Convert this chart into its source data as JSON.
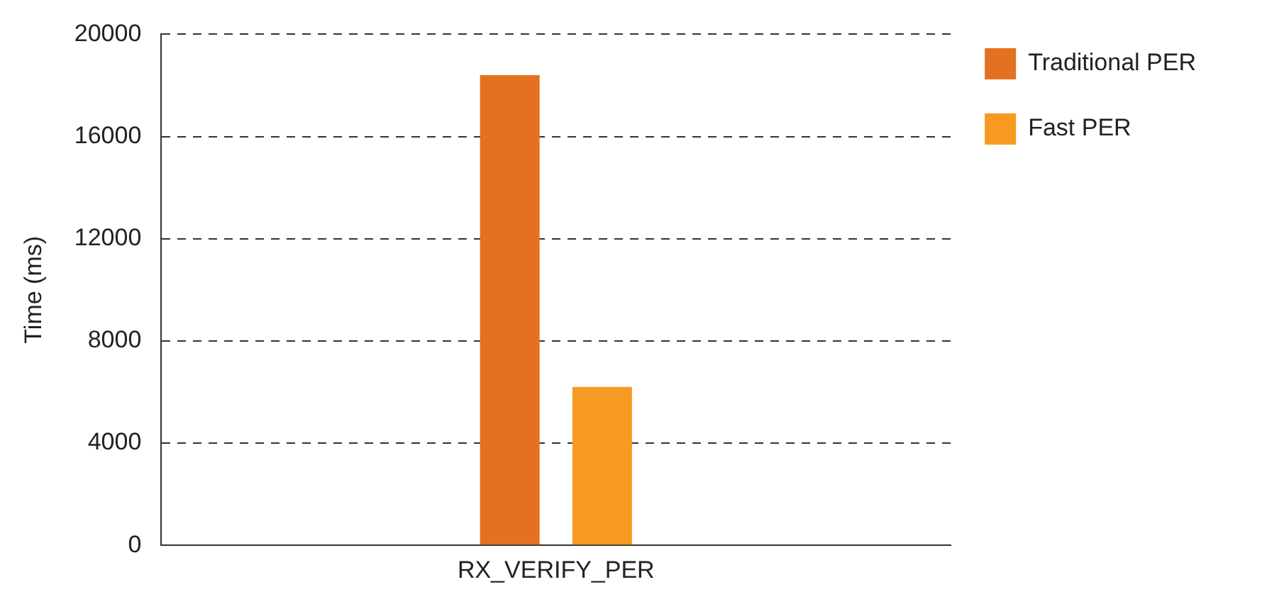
{
  "chart_data": {
    "type": "bar",
    "ylabel": "Time (ms)",
    "categories": [
      "RX_VERIFY_PER"
    ],
    "series": [
      {
        "name": "Traditional PER",
        "color": "#e3711f",
        "values": [
          18400
        ]
      },
      {
        "name": "Fast PER",
        "color": "#f69a21",
        "values": [
          6200
        ]
      }
    ],
    "ylim": [
      0,
      20000
    ],
    "yticks": [
      0,
      4000,
      8000,
      12000,
      16000,
      20000
    ],
    "grid": "y",
    "legend": "top right"
  }
}
